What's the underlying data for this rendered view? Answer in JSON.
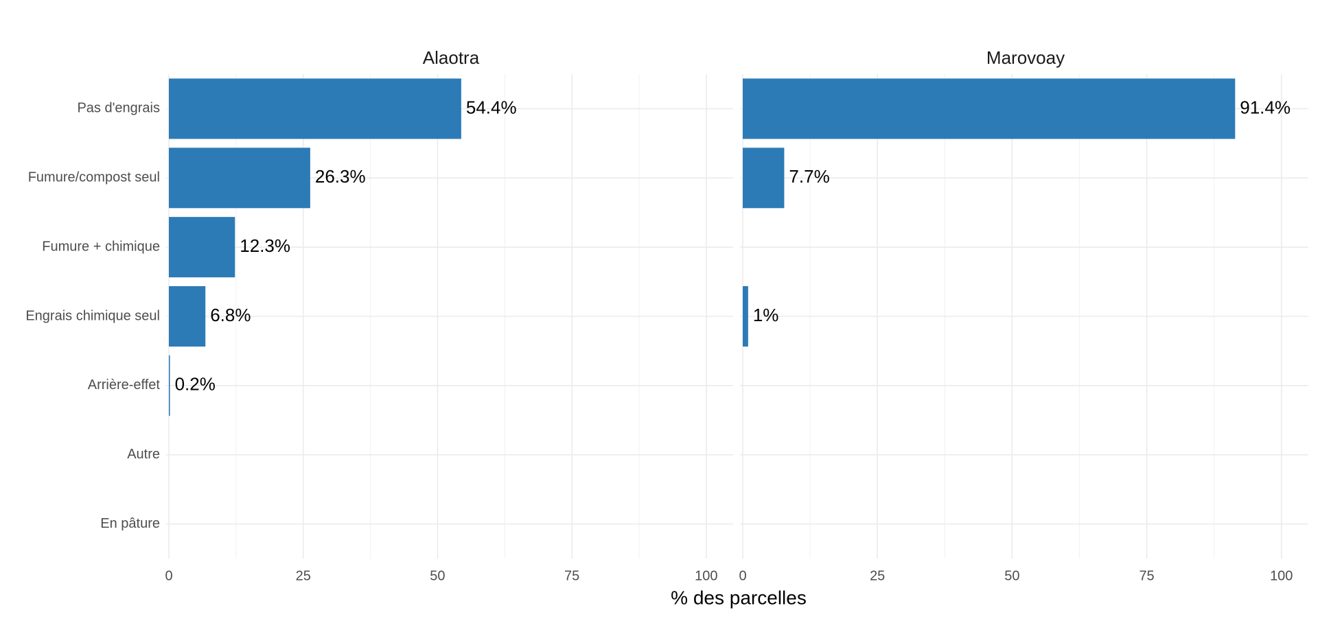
{
  "chart_data": {
    "type": "bar",
    "orientation": "horizontal",
    "xlabel": "% des parcelles",
    "categories": [
      "Pas d'engrais",
      "Fumure/compost seul",
      "Fumure + chimique",
      "Engrais chimique seul",
      "Arrière-effet",
      "Autre",
      "En pâture"
    ],
    "color": "#2c7bb6",
    "xlim": [
      0,
      105
    ],
    "xticks": [
      0,
      25,
      50,
      75,
      100
    ],
    "grid": true,
    "facets": [
      {
        "title": "Alaotra",
        "values": [
          54.4,
          26.3,
          12.3,
          6.8,
          0.2,
          null,
          null
        ],
        "value_labels": [
          "54.4%",
          "26.3%",
          "12.3%",
          "6.8%",
          "0.2%",
          null,
          null
        ]
      },
      {
        "title": "Marovoay",
        "values": [
          91.4,
          7.7,
          null,
          1,
          null,
          null,
          null
        ],
        "value_labels": [
          "91.4%",
          "7.7%",
          null,
          "1%",
          null,
          null,
          null
        ]
      }
    ]
  }
}
